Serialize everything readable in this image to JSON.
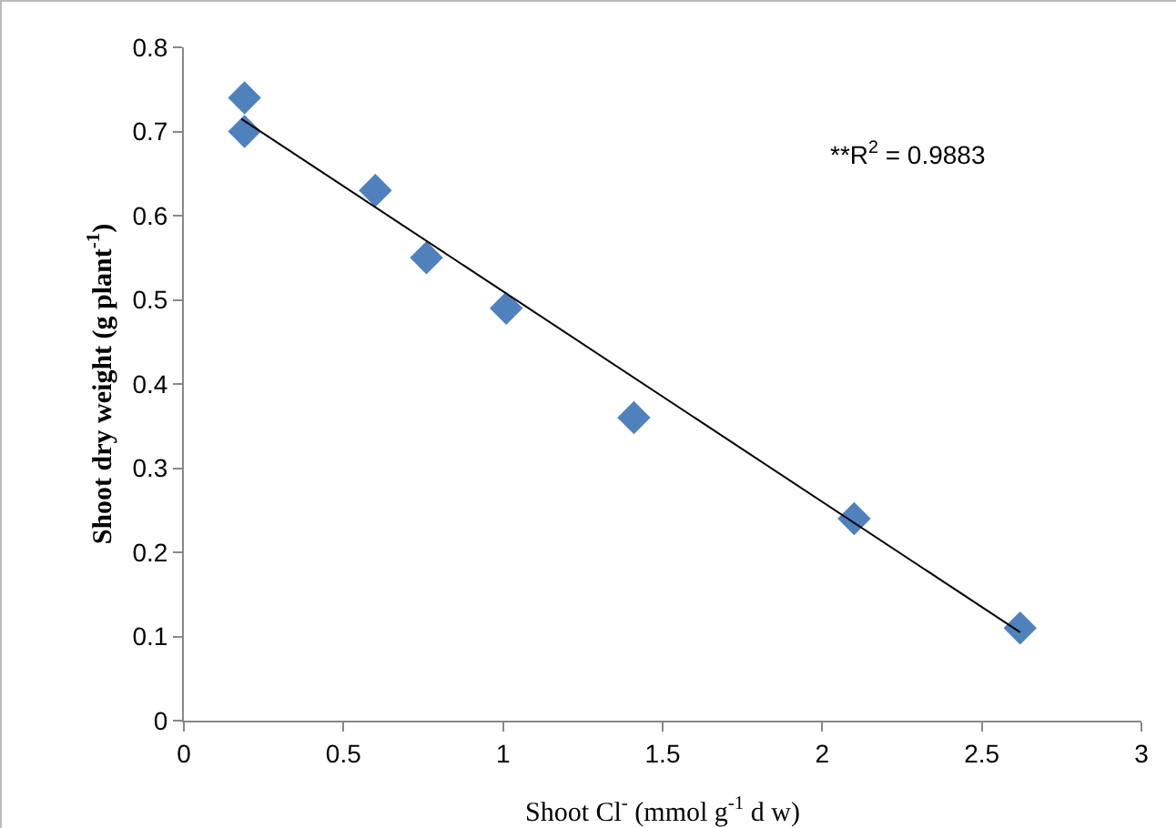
{
  "chart_data": {
    "type": "scatter",
    "xlabel": "Shoot Cl$^{-}$ (mmol g$^{-1}$ d w)",
    "ylabel": "Shoot dry weight (g plant$^{-1}$)",
    "annotations": [
      "**R$^{2}$ = 0.9883"
    ],
    "series": [
      {
        "color": "#4f81bd",
        "marker": "diamond",
        "x": [
          0.19,
          0.19,
          0.6,
          0.76,
          1.01,
          1.41,
          2.1,
          2.62
        ],
        "values": [
          0.74,
          0.7,
          0.63,
          0.55,
          0.49,
          0.36,
          0.24,
          0.11
        ]
      },
      {
        "type": "line",
        "color": "#000000",
        "marker": "none",
        "x": [
          0.18,
          2.62
        ],
        "values": [
          0.715,
          0.105
        ]
      }
    ],
    "xlim": [
      0,
      3
    ],
    "xticks": [
      0,
      0.5,
      1,
      1.5,
      2,
      2.5,
      3
    ],
    "ylim": [
      0,
      0.8
    ],
    "yticks": [
      0,
      0.1,
      0.2,
      0.3,
      0.4,
      0.5,
      0.6,
      0.7,
      0.8
    ],
    "grid": false,
    "legend": false
  }
}
